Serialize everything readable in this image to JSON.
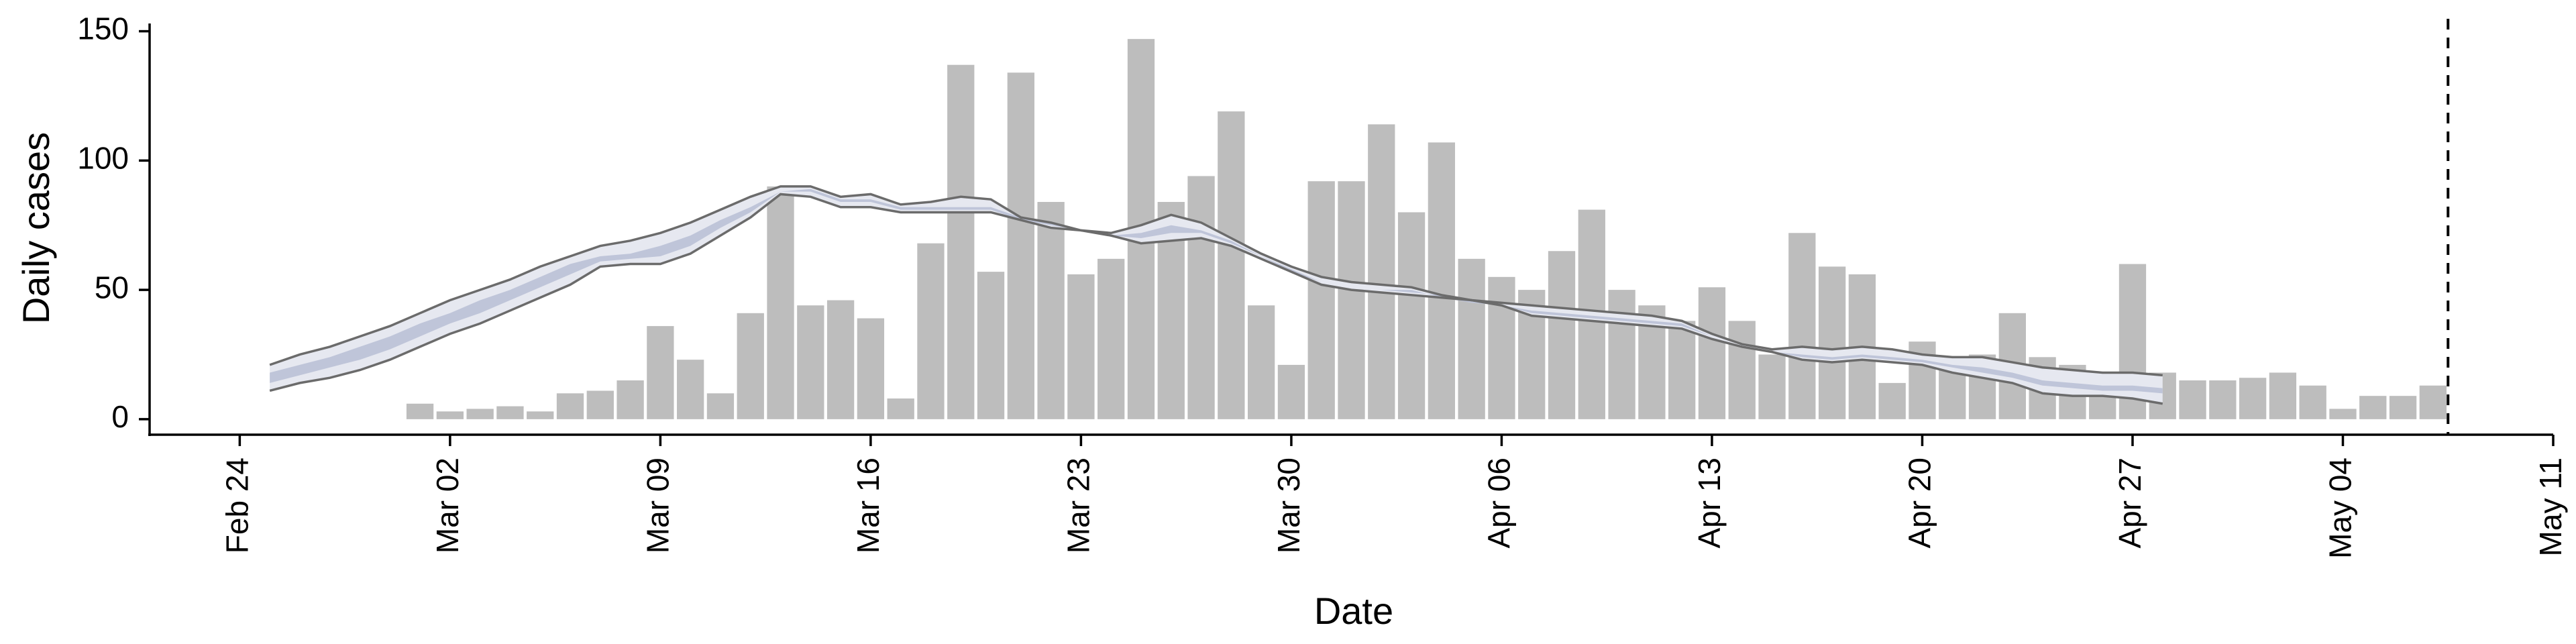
{
  "chart_data": {
    "type": "bar",
    "title": "",
    "xlabel": "Date",
    "ylabel": "Daily cases",
    "x_range": [
      "2020-02-21",
      "2020-05-11"
    ],
    "ylim": [
      -6,
      153
    ],
    "y_ticks": [
      0,
      50,
      100,
      150
    ],
    "x_ticks": [
      {
        "date": "2020-02-24",
        "label": "Feb 24"
      },
      {
        "date": "2020-03-02",
        "label": "Mar 02"
      },
      {
        "date": "2020-03-09",
        "label": "Mar 09"
      },
      {
        "date": "2020-03-16",
        "label": "Mar 16"
      },
      {
        "date": "2020-03-23",
        "label": "Mar 23"
      },
      {
        "date": "2020-03-30",
        "label": "Mar 30"
      },
      {
        "date": "2020-04-06",
        "label": "Apr 06"
      },
      {
        "date": "2020-04-13",
        "label": "Apr 13"
      },
      {
        "date": "2020-04-20",
        "label": "Apr 20"
      },
      {
        "date": "2020-04-27",
        "label": "Apr 27"
      },
      {
        "date": "2020-05-04",
        "label": "May 04"
      },
      {
        "date": "2020-05-11",
        "label": "May 11"
      }
    ],
    "bars": {
      "dates": [
        "2020-03-01",
        "2020-03-02",
        "2020-03-03",
        "2020-03-04",
        "2020-03-05",
        "2020-03-06",
        "2020-03-07",
        "2020-03-08",
        "2020-03-09",
        "2020-03-10",
        "2020-03-11",
        "2020-03-12",
        "2020-03-13",
        "2020-03-14",
        "2020-03-15",
        "2020-03-16",
        "2020-03-17",
        "2020-03-18",
        "2020-03-19",
        "2020-03-20",
        "2020-03-21",
        "2020-03-22",
        "2020-03-23",
        "2020-03-24",
        "2020-03-25",
        "2020-03-26",
        "2020-03-27",
        "2020-03-28",
        "2020-03-29",
        "2020-03-30",
        "2020-03-31",
        "2020-04-01",
        "2020-04-02",
        "2020-04-03",
        "2020-04-04",
        "2020-04-05",
        "2020-04-06",
        "2020-04-07",
        "2020-04-08",
        "2020-04-09",
        "2020-04-10",
        "2020-04-11",
        "2020-04-12",
        "2020-04-13",
        "2020-04-14",
        "2020-04-15",
        "2020-04-16",
        "2020-04-17",
        "2020-04-18",
        "2020-04-19",
        "2020-04-20",
        "2020-04-21",
        "2020-04-22",
        "2020-04-23",
        "2020-04-24",
        "2020-04-25",
        "2020-04-26",
        "2020-04-27",
        "2020-04-28",
        "2020-04-29",
        "2020-04-30",
        "2020-05-01",
        "2020-05-02",
        "2020-05-03",
        "2020-05-04",
        "2020-05-05",
        "2020-05-06",
        "2020-05-07"
      ],
      "values": [
        6,
        3,
        4,
        5,
        3,
        10,
        11,
        15,
        36,
        23,
        10,
        41,
        90,
        44,
        46,
        39,
        8,
        68,
        137,
        57,
        134,
        84,
        56,
        62,
        147,
        84,
        94,
        119,
        44,
        21,
        92,
        92,
        114,
        80,
        107,
        62,
        55,
        50,
        65,
        81,
        50,
        44,
        38,
        51,
        38,
        25,
        72,
        59,
        56,
        14,
        30,
        19,
        25,
        41,
        24,
        21,
        14,
        60,
        18,
        15,
        15,
        16,
        18,
        13,
        4,
        9,
        9,
        13
      ]
    },
    "estimate": {
      "dates": [
        "2020-02-25",
        "2020-02-26",
        "2020-02-27",
        "2020-02-28",
        "2020-02-29",
        "2020-03-01",
        "2020-03-02",
        "2020-03-03",
        "2020-03-04",
        "2020-03-05",
        "2020-03-06",
        "2020-03-07",
        "2020-03-08",
        "2020-03-09",
        "2020-03-10",
        "2020-03-11",
        "2020-03-12",
        "2020-03-13",
        "2020-03-14",
        "2020-03-15",
        "2020-03-16",
        "2020-03-17",
        "2020-03-18",
        "2020-03-19",
        "2020-03-20",
        "2020-03-21",
        "2020-03-22",
        "2020-03-23",
        "2020-03-24",
        "2020-03-25",
        "2020-03-26",
        "2020-03-27",
        "2020-03-28",
        "2020-03-29",
        "2020-03-30",
        "2020-03-31",
        "2020-04-01",
        "2020-04-02",
        "2020-04-03",
        "2020-04-04",
        "2020-04-05",
        "2020-04-06",
        "2020-04-07",
        "2020-04-08",
        "2020-04-09",
        "2020-04-10",
        "2020-04-11",
        "2020-04-12",
        "2020-04-13",
        "2020-04-14",
        "2020-04-15",
        "2020-04-16",
        "2020-04-17",
        "2020-04-18",
        "2020-04-19",
        "2020-04-20",
        "2020-04-21",
        "2020-04-22",
        "2020-04-23",
        "2020-04-24",
        "2020-04-25",
        "2020-04-26",
        "2020-04-27",
        "2020-04-28"
      ],
      "upper": [
        21,
        25,
        28,
        32,
        36,
        41,
        46,
        50,
        54,
        59,
        63,
        67,
        69,
        72,
        76,
        81,
        86,
        90,
        90,
        86,
        87,
        83,
        84,
        86,
        85,
        78,
        76,
        73,
        72,
        75,
        79,
        76,
        70,
        64,
        59,
        55,
        53,
        52,
        51,
        48,
        46,
        45,
        44,
        43,
        42,
        41,
        40,
        38,
        33,
        29,
        27,
        28,
        27,
        28,
        27,
        25,
        24,
        24,
        22,
        20,
        19,
        18,
        18,
        17
      ],
      "lower": [
        11,
        14,
        16,
        19,
        23,
        28,
        33,
        37,
        42,
        47,
        52,
        59,
        60,
        60,
        64,
        71,
        78,
        87,
        86,
        82,
        82,
        80,
        80,
        80,
        80,
        77,
        74,
        73,
        71,
        68,
        69,
        70,
        67,
        62,
        57,
        52,
        50,
        49,
        48,
        47,
        46,
        44,
        40,
        39,
        38,
        37,
        36,
        35,
        31,
        28,
        26,
        23,
        22,
        23,
        22,
        21,
        18,
        16,
        14,
        10,
        9,
        9,
        8,
        6
      ],
      "inner_upper": [
        18,
        21,
        24,
        28,
        32,
        37,
        41,
        46,
        50,
        55,
        60,
        63,
        64,
        67,
        71,
        77,
        82,
        88,
        89,
        85,
        85,
        82,
        82,
        82,
        82,
        78,
        76,
        73,
        71,
        72,
        75,
        73,
        69,
        63,
        58,
        53,
        51,
        50,
        50,
        47,
        45,
        44,
        42,
        41,
        40,
        39,
        38,
        37,
        32,
        28,
        26,
        25,
        24,
        25,
        24,
        23,
        21,
        20,
        18,
        15,
        14,
        13,
        13,
        12
      ],
      "inner_lower": [
        14,
        17,
        20,
        23,
        27,
        32,
        37,
        41,
        46,
        51,
        56,
        61,
        62,
        63,
        67,
        74,
        80,
        88,
        88,
        84,
        84,
        81,
        81,
        81,
        81,
        77,
        75,
        73,
        71,
        70,
        72,
        72,
        68,
        63,
        57,
        53,
        51,
        50,
        49,
        48,
        46,
        44,
        41,
        40,
        39,
        38,
        37,
        36,
        32,
        28,
        26,
        24,
        23,
        24,
        23,
        22,
        20,
        18,
        16,
        13,
        12,
        11,
        11,
        10
      ]
    },
    "vertical_line_date": "2020-05-07",
    "colors": {
      "bar": "#bdbdbd",
      "band_outer": "#e6e8f0",
      "band_inner": "#bfc5d9",
      "band_edge": "#6b6b6b"
    },
    "grid": false,
    "legend": "none"
  }
}
